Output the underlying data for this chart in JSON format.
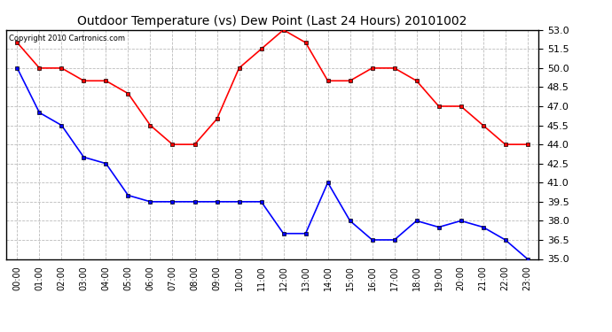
{
  "title": "Outdoor Temperature (vs) Dew Point (Last 24 Hours) 20101002",
  "copyright_text": "Copyright 2010 Cartronics.com",
  "hours": [
    "00:00",
    "01:00",
    "02:00",
    "03:00",
    "04:00",
    "05:00",
    "06:00",
    "07:00",
    "08:00",
    "09:00",
    "10:00",
    "11:00",
    "12:00",
    "13:00",
    "14:00",
    "15:00",
    "16:00",
    "17:00",
    "18:00",
    "19:00",
    "20:00",
    "21:00",
    "22:00",
    "23:00"
  ],
  "temp": [
    52.0,
    50.0,
    50.0,
    49.0,
    49.0,
    48.0,
    45.5,
    44.0,
    44.0,
    46.0,
    50.0,
    51.5,
    53.0,
    52.0,
    49.0,
    49.0,
    50.0,
    50.0,
    49.0,
    47.0,
    47.0,
    45.5,
    44.0,
    44.0
  ],
  "dewpoint": [
    50.0,
    46.5,
    45.5,
    43.0,
    42.5,
    40.0,
    39.5,
    39.5,
    39.5,
    39.5,
    39.5,
    39.5,
    37.0,
    37.0,
    41.0,
    38.0,
    36.5,
    36.5,
    38.0,
    37.5,
    38.0,
    37.5,
    36.5,
    35.0
  ],
  "temp_color": "#FF0000",
  "dewpoint_color": "#0000FF",
  "bg_color": "#FFFFFF",
  "plot_bg_color": "#FFFFFF",
  "grid_color": "#BBBBBB",
  "ylim_min": 35.0,
  "ylim_max": 53.0,
  "yticks": [
    35.0,
    36.5,
    38.0,
    39.5,
    41.0,
    42.5,
    44.0,
    45.5,
    47.0,
    48.5,
    50.0,
    51.5,
    53.0
  ],
  "title_fontsize": 10,
  "marker": "s",
  "marker_size": 3,
  "linewidth": 1.2
}
